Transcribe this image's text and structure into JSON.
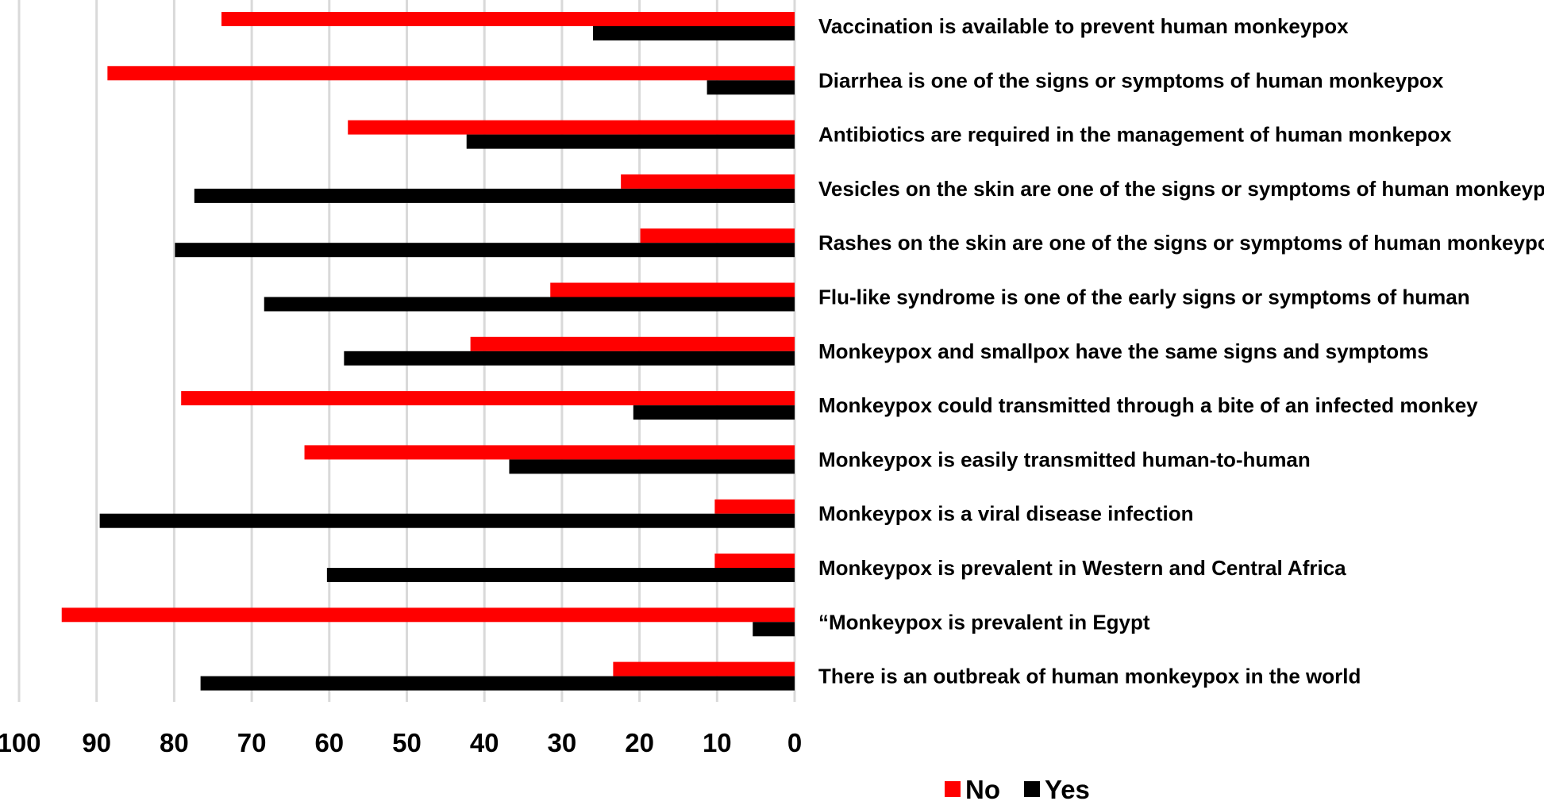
{
  "chart_data": {
    "type": "bar",
    "orientation": "horizontal",
    "x_direction": "reversed",
    "xlim": [
      0,
      100
    ],
    "x_ticks": [
      100,
      90,
      80,
      70,
      60,
      50,
      40,
      30,
      20,
      10,
      0
    ],
    "grid": true,
    "legend_position": "bottom",
    "title": "",
    "xlabel": "",
    "ylabel": "",
    "categories": [
      "Vaccination is available to prevent human monkeypox",
      "Diarrhea is one of the signs or symptoms of human monkeypox",
      "Antibiotics are required in the management of human monkepox",
      "Vesicles on the skin are one of the signs or symptoms of human monkeypox",
      "Rashes on the skin are one of the signs or symptoms of human monkeypox",
      "Flu-like syndrome is one of the early signs or symptoms of human",
      "Monkeypox and smallpox have the same signs and symptoms",
      "Monkeypox could transmitted through a bite of an infected monkey",
      "Monkeypox is easily transmitted human-to-human",
      "Monkeypox is a viral disease infection",
      "Monkeypox is prevalent in Western and Central Africa",
      "“Monkeypox is prevalent in Egypt",
      "There is an outbreak of human monkeypox in the world"
    ],
    "series": [
      {
        "name": "No",
        "color": "#ff0000",
        "values": [
          73.9,
          88.6,
          57.6,
          22.4,
          19.9,
          31.5,
          41.8,
          79.1,
          63.2,
          10.3,
          10.3,
          94.5,
          23.4
        ]
      },
      {
        "name": "Yes",
        "color": "#000000",
        "values": [
          26.0,
          11.3,
          42.3,
          77.4,
          79.9,
          68.4,
          58.1,
          20.8,
          36.8,
          89.6,
          60.3,
          5.4,
          76.6
        ]
      }
    ]
  }
}
